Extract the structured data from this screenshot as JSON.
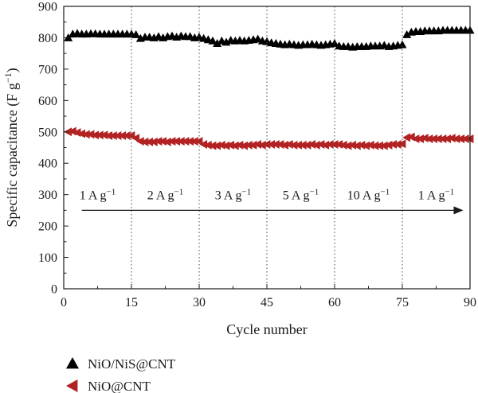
{
  "chart_data": {
    "type": "scatter",
    "xlabel": "Cycle number",
    "ylabel": "Specific capacitance (F g",
    "ylabel_sup": "−1",
    "ylabel_close": ")",
    "xlim": [
      0,
      90
    ],
    "ylim": [
      0,
      900
    ],
    "xticks": [
      0,
      15,
      30,
      45,
      60,
      75,
      90
    ],
    "yticks": [
      0,
      100,
      200,
      300,
      400,
      500,
      600,
      700,
      800,
      900
    ],
    "grid": false,
    "legend_position": "bottom-left, below plot",
    "segment_dividers": [
      15,
      30,
      45,
      60,
      75
    ],
    "segments": [
      {
        "value": "1 A g",
        "sup": "−1"
      },
      {
        "value": "2 A g",
        "sup": "−1"
      },
      {
        "value": "3 A g",
        "sup": "−1"
      },
      {
        "value": "5 A g",
        "sup": "−1"
      },
      {
        "value": "10 A g",
        "sup": "−1"
      },
      {
        "value": "1 A g",
        "sup": "−1"
      }
    ],
    "series": [
      {
        "name": "NiO/NiS@CNT",
        "marker": "triangle-up",
        "color": "#000000",
        "x": [
          1,
          2,
          3,
          4,
          5,
          6,
          7,
          8,
          9,
          10,
          11,
          12,
          13,
          14,
          15,
          16,
          17,
          18,
          19,
          20,
          21,
          22,
          23,
          24,
          25,
          26,
          27,
          28,
          29,
          30,
          31,
          32,
          33,
          34,
          35,
          36,
          37,
          38,
          39,
          40,
          41,
          42,
          43,
          44,
          45,
          46,
          47,
          48,
          49,
          50,
          51,
          52,
          53,
          54,
          55,
          56,
          57,
          58,
          59,
          60,
          61,
          62,
          63,
          64,
          65,
          66,
          67,
          68,
          69,
          70,
          71,
          72,
          73,
          74,
          75,
          76,
          77,
          78,
          79,
          80,
          81,
          82,
          83,
          84,
          85,
          86,
          87,
          88,
          89,
          90
        ],
        "y": [
          800,
          812,
          814,
          812,
          812,
          813,
          813,
          812,
          812,
          812,
          812,
          812,
          812,
          812,
          812,
          810,
          798,
          802,
          802,
          800,
          804,
          800,
          804,
          806,
          802,
          806,
          804,
          804,
          800,
          802,
          798,
          794,
          790,
          782,
          790,
          786,
          792,
          790,
          792,
          790,
          792,
          794,
          796,
          790,
          788,
          784,
          782,
          780,
          778,
          780,
          778,
          776,
          778,
          778,
          780,
          778,
          776,
          778,
          780,
          782,
          774,
          772,
          772,
          770,
          772,
          772,
          772,
          774,
          774,
          774,
          776,
          772,
          774,
          776,
          778,
          810,
          818,
          820,
          820,
          822,
          822,
          822,
          822,
          824,
          824,
          824,
          824,
          824,
          824,
          824
        ]
      },
      {
        "name": "NiO@CNT",
        "marker": "triangle-left",
        "color": "#b22222",
        "x": [
          1,
          2,
          3,
          4,
          5,
          6,
          7,
          8,
          9,
          10,
          11,
          12,
          13,
          14,
          15,
          16,
          17,
          18,
          19,
          20,
          21,
          22,
          23,
          24,
          25,
          26,
          27,
          28,
          29,
          30,
          31,
          32,
          33,
          34,
          35,
          36,
          37,
          38,
          39,
          40,
          41,
          42,
          43,
          44,
          45,
          46,
          47,
          48,
          49,
          50,
          51,
          52,
          53,
          54,
          55,
          56,
          57,
          58,
          59,
          60,
          61,
          62,
          63,
          64,
          65,
          66,
          67,
          68,
          69,
          70,
          71,
          72,
          73,
          74,
          75,
          76,
          77,
          78,
          79,
          80,
          81,
          82,
          83,
          84,
          85,
          86,
          87,
          88,
          89,
          90
        ],
        "y": [
          500,
          502,
          498,
          494,
          492,
          492,
          490,
          490,
          490,
          488,
          488,
          488,
          488,
          488,
          488,
          480,
          470,
          468,
          468,
          468,
          470,
          470,
          468,
          470,
          470,
          470,
          470,
          470,
          470,
          470,
          460,
          458,
          456,
          456,
          458,
          456,
          458,
          456,
          458,
          456,
          458,
          458,
          460,
          458,
          460,
          460,
          460,
          460,
          458,
          460,
          458,
          458,
          458,
          458,
          460,
          458,
          460,
          458,
          460,
          460,
          460,
          458,
          456,
          458,
          456,
          458,
          456,
          458,
          456,
          456,
          456,
          458,
          460,
          460,
          462,
          482,
          484,
          478,
          478,
          480,
          478,
          478,
          478,
          478,
          478,
          480,
          478,
          478,
          478,
          478
        ]
      }
    ]
  }
}
